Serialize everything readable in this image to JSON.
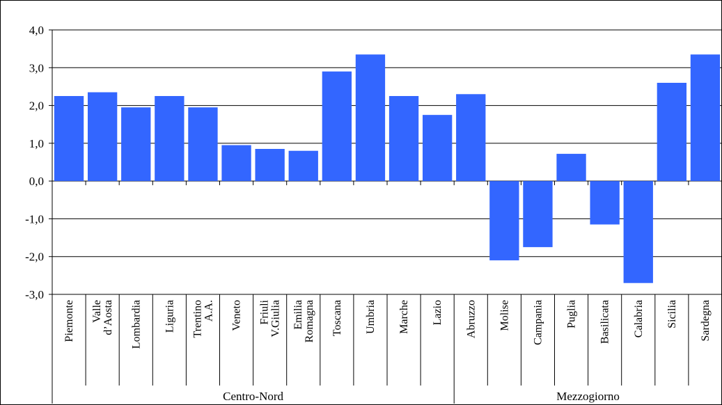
{
  "chart_data": {
    "type": "bar",
    "title": "",
    "xlabel": "",
    "ylabel": "",
    "ylim": [
      -3.0,
      4.0
    ],
    "y_ticks": [
      "4,0",
      "3,0",
      "2,0",
      "1,0",
      "0,0",
      "-1,0",
      "-2,0",
      "-3,0"
    ],
    "grid": "horizontal",
    "bar_color": "#3366FF",
    "categories": [
      [
        "Piemonte"
      ],
      [
        "Valle",
        "d’Aosta"
      ],
      [
        "Lombardia"
      ],
      [
        "Liguria"
      ],
      [
        "Trentino",
        "A.A."
      ],
      [
        "Veneto"
      ],
      [
        "Friuli",
        "V.Giulia"
      ],
      [
        "Emilia",
        "Romagna"
      ],
      [
        "Toscana"
      ],
      [
        "Umbria"
      ],
      [
        "Marche"
      ],
      [
        "Lazio"
      ],
      [
        "Abruzzo"
      ],
      [
        "Molise"
      ],
      [
        "Campania"
      ],
      [
        "Puglia"
      ],
      [
        "Basilicata"
      ],
      [
        "Calabria"
      ],
      [
        "Sicilia"
      ],
      [
        "Sardegna"
      ]
    ],
    "values": [
      2.25,
      2.35,
      1.95,
      2.25,
      1.95,
      0.95,
      0.85,
      0.8,
      2.9,
      3.35,
      2.25,
      1.75,
      2.3,
      -2.1,
      -1.75,
      0.72,
      -1.15,
      -2.7,
      2.6,
      3.35
    ],
    "groups": [
      {
        "label": "Centro-Nord",
        "count": 12
      },
      {
        "label": "Mezzogiorno",
        "count": 8
      }
    ]
  }
}
